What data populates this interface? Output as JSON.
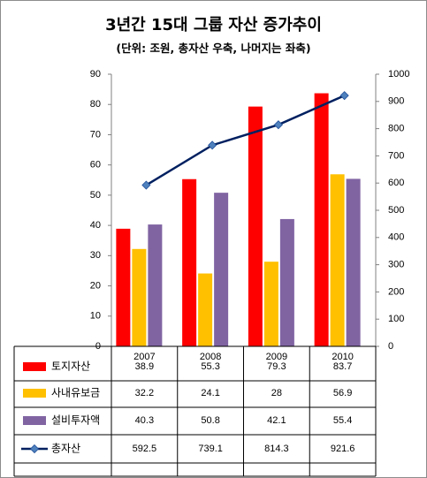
{
  "title": "3년간 15대 그룹 자산 증가추이",
  "subtitle": "(단위: 조원, 총자산 우축, 나머지는 좌축)",
  "colors": {
    "land": "#ff0000",
    "reserve": "#ffc000",
    "capex": "#8064a2",
    "total": "#002060",
    "total_marker": "#4f81bd"
  },
  "chart_data": {
    "type": "bar",
    "categories": [
      "2007",
      "2008",
      "2009",
      "2010"
    ],
    "series": [
      {
        "name": "토지자산",
        "values": [
          38.9,
          55.3,
          79.3,
          83.7
        ],
        "axis": "left",
        "kind": "bar"
      },
      {
        "name": "사내유보금",
        "values": [
          32.2,
          24.1,
          28,
          56.9
        ],
        "axis": "left",
        "kind": "bar"
      },
      {
        "name": "설비투자액",
        "values": [
          40.3,
          50.8,
          42.1,
          55.4
        ],
        "axis": "left",
        "kind": "bar"
      },
      {
        "name": "총자산",
        "values": [
          592.5,
          739.1,
          814.3,
          921.6
        ],
        "axis": "right",
        "kind": "line"
      }
    ],
    "ylim_left": [
      0,
      90
    ],
    "yticks_left": [
      0,
      10,
      20,
      30,
      40,
      50,
      60,
      70,
      80,
      90
    ],
    "ylim_right": [
      0,
      1000
    ],
    "yticks_right": [
      0,
      100,
      200,
      300,
      400,
      500,
      600,
      700,
      800,
      900,
      1000
    ],
    "data_table": true,
    "cell_text": [
      [
        "38.9",
        "55.3",
        "79.3",
        "83.7"
      ],
      [
        "32.2",
        "24.1",
        "28",
        "56.9"
      ],
      [
        "40.3",
        "50.8",
        "42.1",
        "55.4"
      ],
      [
        "592.5",
        "739.1",
        "814.3",
        "921.6"
      ]
    ],
    "grid": false
  }
}
